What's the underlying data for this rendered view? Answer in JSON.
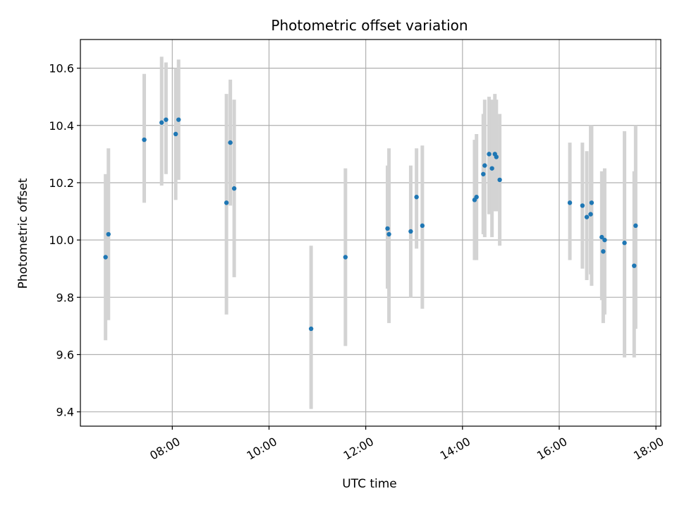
{
  "chart_data": {
    "type": "scatter",
    "title": "Photometric offset variation",
    "xlabel": "UTC time",
    "ylabel": "Photometric offset",
    "x_unit": "hours",
    "xlim": [
      6.1,
      18.1
    ],
    "ylim": [
      9.35,
      10.7
    ],
    "xticks": [
      {
        "value": 8,
        "label": "08:00"
      },
      {
        "value": 10,
        "label": "10:00"
      },
      {
        "value": 12,
        "label": "12:00"
      },
      {
        "value": 14,
        "label": "14:00"
      },
      {
        "value": 16,
        "label": "16:00"
      },
      {
        "value": 18,
        "label": "18:00"
      }
    ],
    "yticks": [
      {
        "value": 9.4,
        "label": "9.4"
      },
      {
        "value": 9.6,
        "label": "9.6"
      },
      {
        "value": 9.8,
        "label": "9.8"
      },
      {
        "value": 10.0,
        "label": "10.0"
      },
      {
        "value": 10.2,
        "label": "10.2"
      },
      {
        "value": 10.4,
        "label": "10.4"
      },
      {
        "value": 10.6,
        "label": "10.6"
      }
    ],
    "grid": true,
    "colors": {
      "point": "#1f77b4",
      "errorbar": "#d3d3d3",
      "grid": "#b0b0b0"
    },
    "series": [
      {
        "points": [
          {
            "x": 6.62,
            "y": 9.94,
            "ylo": 9.65,
            "yhi": 10.23
          },
          {
            "x": 6.68,
            "y": 10.02,
            "ylo": 9.72,
            "yhi": 10.32
          },
          {
            "x": 7.42,
            "y": 10.35,
            "ylo": 10.13,
            "yhi": 10.58
          },
          {
            "x": 7.78,
            "y": 10.41,
            "ylo": 10.19,
            "yhi": 10.64
          },
          {
            "x": 7.87,
            "y": 10.42,
            "ylo": 10.23,
            "yhi": 10.62
          },
          {
            "x": 8.07,
            "y": 10.37,
            "ylo": 10.14,
            "yhi": 10.6
          },
          {
            "x": 8.13,
            "y": 10.42,
            "ylo": 10.21,
            "yhi": 10.63
          },
          {
            "x": 9.12,
            "y": 10.13,
            "ylo": 9.74,
            "yhi": 10.51
          },
          {
            "x": 9.2,
            "y": 10.34,
            "ylo": 10.12,
            "yhi": 10.56
          },
          {
            "x": 9.28,
            "y": 10.18,
            "ylo": 9.87,
            "yhi": 10.49
          },
          {
            "x": 10.87,
            "y": 9.69,
            "ylo": 9.41,
            "yhi": 9.98
          },
          {
            "x": 11.58,
            "y": 9.94,
            "ylo": 9.63,
            "yhi": 10.25
          },
          {
            "x": 12.45,
            "y": 10.04,
            "ylo": 9.83,
            "yhi": 10.26
          },
          {
            "x": 12.48,
            "y": 10.02,
            "ylo": 9.71,
            "yhi": 10.32
          },
          {
            "x": 12.93,
            "y": 10.03,
            "ylo": 9.8,
            "yhi": 10.26
          },
          {
            "x": 13.05,
            "y": 10.15,
            "ylo": 9.97,
            "yhi": 10.32
          },
          {
            "x": 13.17,
            "y": 10.05,
            "ylo": 9.76,
            "yhi": 10.33
          },
          {
            "x": 14.25,
            "y": 10.14,
            "ylo": 9.93,
            "yhi": 10.35
          },
          {
            "x": 14.29,
            "y": 10.15,
            "ylo": 9.93,
            "yhi": 10.37
          },
          {
            "x": 14.43,
            "y": 10.23,
            "ylo": 10.02,
            "yhi": 10.44
          },
          {
            "x": 14.46,
            "y": 10.26,
            "ylo": 10.01,
            "yhi": 10.49
          },
          {
            "x": 14.55,
            "y": 10.3,
            "ylo": 10.09,
            "yhi": 10.5
          },
          {
            "x": 14.61,
            "y": 10.25,
            "ylo": 10.01,
            "yhi": 10.49
          },
          {
            "x": 14.67,
            "y": 10.3,
            "ylo": 10.1,
            "yhi": 10.51
          },
          {
            "x": 14.7,
            "y": 10.29,
            "ylo": 10.1,
            "yhi": 10.49
          },
          {
            "x": 14.77,
            "y": 10.21,
            "ylo": 9.98,
            "yhi": 10.44
          },
          {
            "x": 16.22,
            "y": 10.13,
            "ylo": 9.93,
            "yhi": 10.34
          },
          {
            "x": 16.48,
            "y": 10.12,
            "ylo": 9.9,
            "yhi": 10.34
          },
          {
            "x": 16.57,
            "y": 10.08,
            "ylo": 9.86,
            "yhi": 10.31
          },
          {
            "x": 16.65,
            "y": 10.09,
            "ylo": 9.88,
            "yhi": 10.4
          },
          {
            "x": 16.67,
            "y": 10.13,
            "ylo": 9.84,
            "yhi": 10.4
          },
          {
            "x": 16.88,
            "y": 10.01,
            "ylo": 9.79,
            "yhi": 10.24
          },
          {
            "x": 16.91,
            "y": 9.96,
            "ylo": 9.71,
            "yhi": 10.22
          },
          {
            "x": 16.94,
            "y": 10.0,
            "ylo": 9.74,
            "yhi": 10.25
          },
          {
            "x": 17.35,
            "y": 9.99,
            "ylo": 9.59,
            "yhi": 10.38
          },
          {
            "x": 17.55,
            "y": 9.91,
            "ylo": 9.59,
            "yhi": 10.24
          },
          {
            "x": 17.58,
            "y": 10.05,
            "ylo": 9.69,
            "yhi": 10.4
          }
        ]
      }
    ]
  }
}
